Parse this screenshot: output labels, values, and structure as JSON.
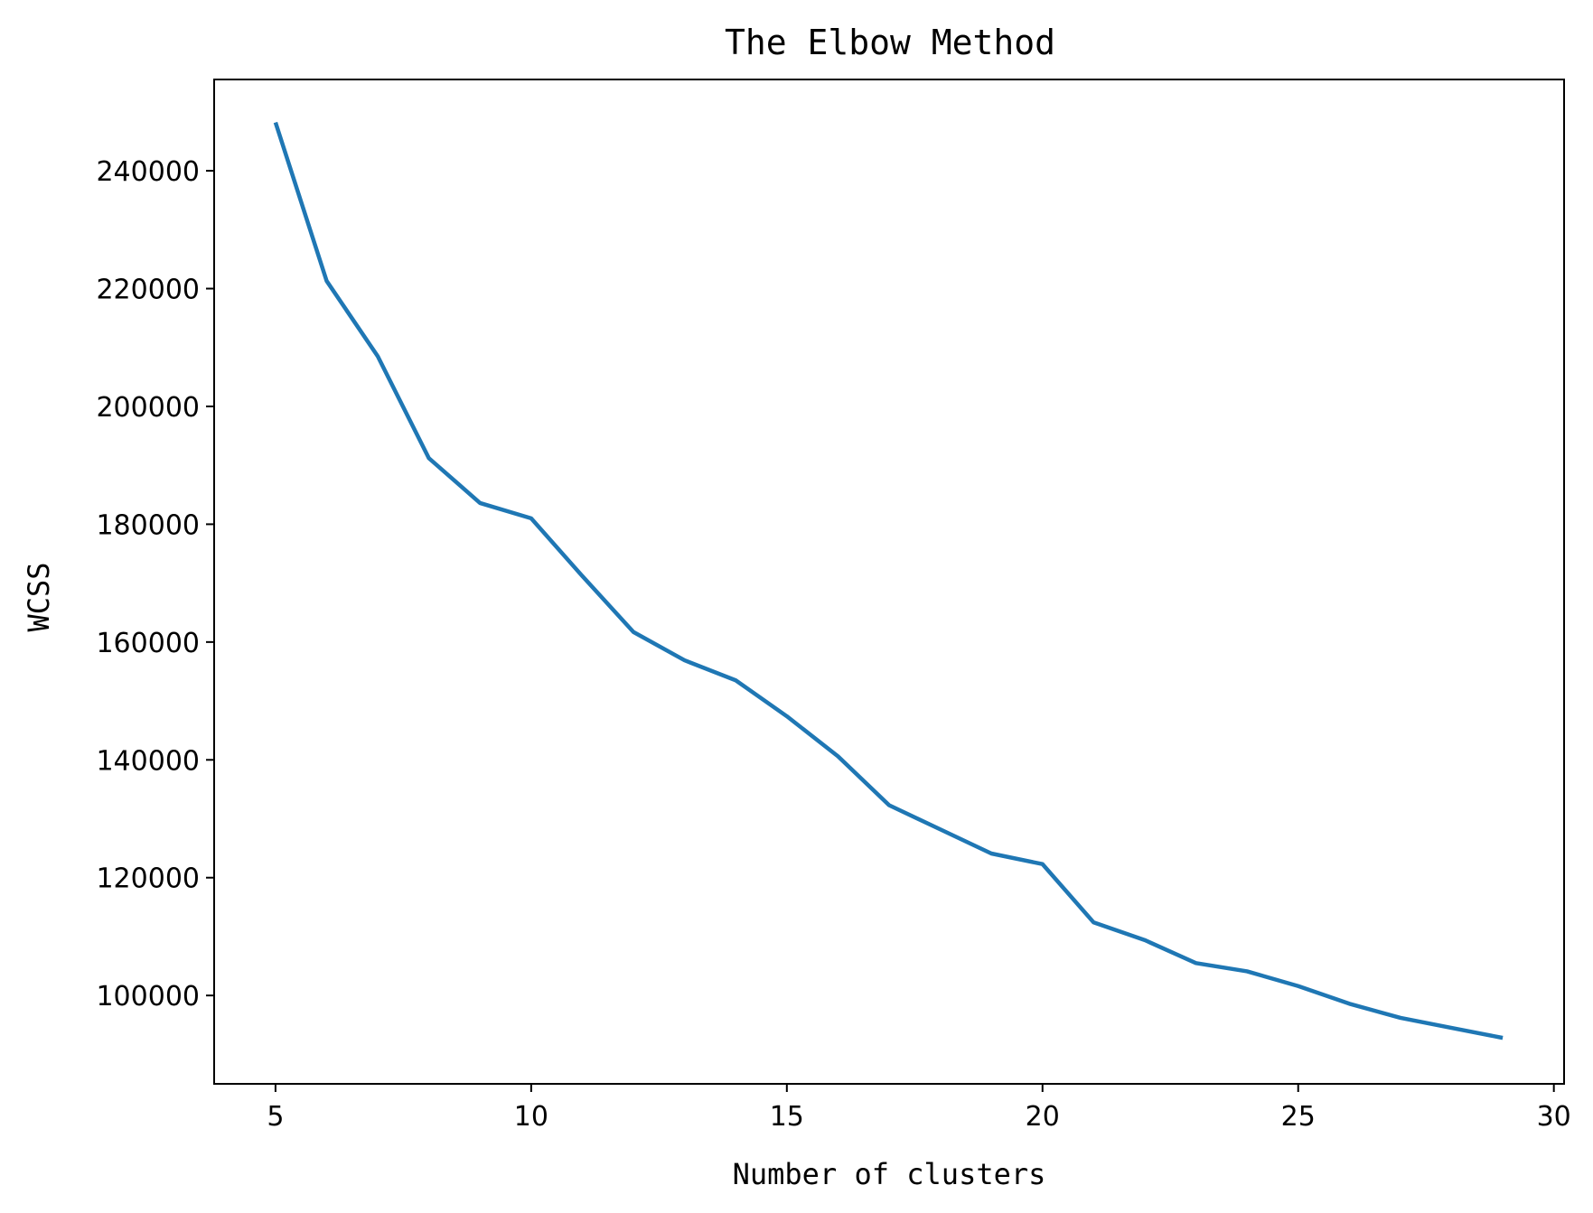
{
  "chart_data": {
    "type": "line",
    "title": "The Elbow Method",
    "xlabel": "Number of clusters",
    "ylabel": "WCSS",
    "xlim": [
      3.8,
      30.2
    ],
    "ylim": [
      85000,
      255500
    ],
    "xticks": [
      5,
      10,
      15,
      20,
      25,
      30
    ],
    "yticks": [
      100000,
      120000,
      140000,
      160000,
      180000,
      200000,
      220000,
      240000
    ],
    "xtick_labels": [
      "5",
      "10",
      "15",
      "20",
      "25",
      "30"
    ],
    "ytick_labels": [
      "100000",
      "120000",
      "140000",
      "160000",
      "180000",
      "200000",
      "220000",
      "240000"
    ],
    "grid": false,
    "line_color": "#1f77b4",
    "series": [
      {
        "x": [
          5,
          6,
          7,
          8,
          9,
          10,
          11,
          12,
          13,
          14,
          15,
          16,
          17,
          18,
          19,
          20,
          21,
          22,
          23,
          24,
          25,
          26,
          27,
          28,
          29
        ],
        "values": [
          248200,
          221300,
          208500,
          191200,
          183600,
          181000,
          171200,
          161700,
          156900,
          153500,
          147400,
          140600,
          132300,
          128200,
          124100,
          122300,
          112400,
          109400,
          105500,
          104100,
          101600,
          98600,
          96200,
          94500,
          92800
        ]
      }
    ]
  }
}
